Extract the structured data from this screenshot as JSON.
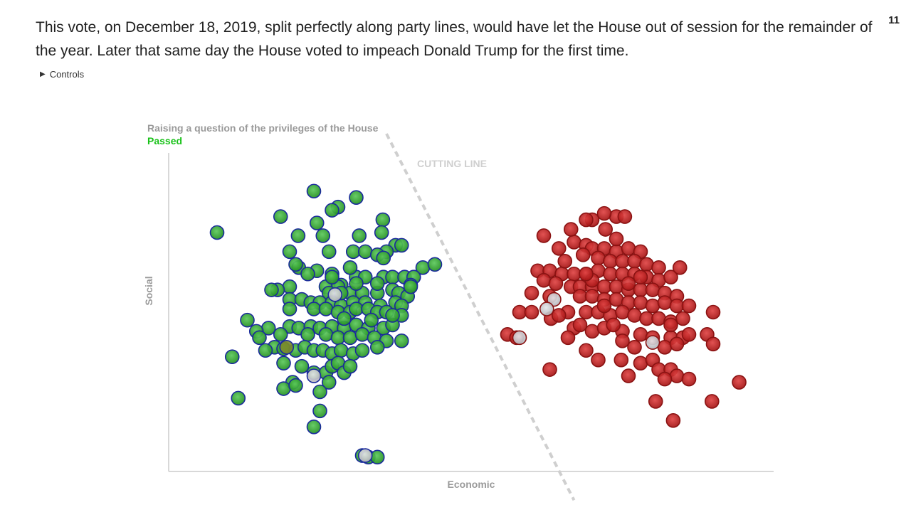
{
  "page_number": "11",
  "paragraph": "This vote, on December 18, 2019, split perfectly along party lines, would have let the House out of session for the remainder of the year. Later that same day the House voted to impeach Donald Trump for the first time.",
  "controls_label": "Controls",
  "colors": {
    "democrat_fill": "#2ea02e",
    "democrat_stroke": "#1a2a9c",
    "republican_fill": "#c31d1d",
    "republican_stroke": "#8a1212",
    "neutral_fill": "#c9c9cf",
    "passed_text": "#19c219",
    "axis": "#cccccc",
    "label_gray": "#9a9a9a",
    "cutting_line": "#cfcfcf"
  },
  "chart_data": {
    "type": "scatter",
    "title": "Raising a question of the privileges of the House",
    "result": "Passed",
    "xlabel": "Economic",
    "ylabel": "Social",
    "cutting_line_label": "CUTTING LINE",
    "cutting_line": [
      [
        0.36,
        1.06
      ],
      [
        0.67,
        -0.09
      ]
    ],
    "xlim": [
      0,
      1
    ],
    "ylim": [
      0,
      1
    ],
    "series": [
      {
        "party": "democrat",
        "points": [
          [
            0.24,
            0.88
          ],
          [
            0.31,
            0.86
          ],
          [
            0.28,
            0.83
          ],
          [
            0.27,
            0.82
          ],
          [
            0.185,
            0.8
          ],
          [
            0.245,
            0.78
          ],
          [
            0.354,
            0.79
          ],
          [
            0.352,
            0.75
          ],
          [
            0.08,
            0.75
          ],
          [
            0.214,
            0.74
          ],
          [
            0.255,
            0.74
          ],
          [
            0.315,
            0.74
          ],
          [
            0.375,
            0.71
          ],
          [
            0.385,
            0.71
          ],
          [
            0.36,
            0.69
          ],
          [
            0.2,
            0.69
          ],
          [
            0.265,
            0.69
          ],
          [
            0.305,
            0.69
          ],
          [
            0.325,
            0.69
          ],
          [
            0.345,
            0.68
          ],
          [
            0.42,
            0.64
          ],
          [
            0.215,
            0.64
          ],
          [
            0.245,
            0.63
          ],
          [
            0.27,
            0.62
          ],
          [
            0.23,
            0.62
          ],
          [
            0.31,
            0.61
          ],
          [
            0.355,
            0.61
          ],
          [
            0.37,
            0.61
          ],
          [
            0.39,
            0.61
          ],
          [
            0.405,
            0.61
          ],
          [
            0.325,
            0.61
          ],
          [
            0.4,
            0.585
          ],
          [
            0.285,
            0.585
          ],
          [
            0.2,
            0.58
          ],
          [
            0.26,
            0.58
          ],
          [
            0.28,
            0.58
          ],
          [
            0.18,
            0.57
          ],
          [
            0.17,
            0.57
          ],
          [
            0.265,
            0.56
          ],
          [
            0.3,
            0.56
          ],
          [
            0.32,
            0.56
          ],
          [
            0.345,
            0.56
          ],
          [
            0.37,
            0.57
          ],
          [
            0.38,
            0.56
          ],
          [
            0.395,
            0.55
          ],
          [
            0.2,
            0.54
          ],
          [
            0.22,
            0.54
          ],
          [
            0.235,
            0.53
          ],
          [
            0.25,
            0.53
          ],
          [
            0.27,
            0.53
          ],
          [
            0.285,
            0.52
          ],
          [
            0.305,
            0.53
          ],
          [
            0.325,
            0.53
          ],
          [
            0.35,
            0.52
          ],
          [
            0.375,
            0.53
          ],
          [
            0.385,
            0.52
          ],
          [
            0.2,
            0.51
          ],
          [
            0.24,
            0.51
          ],
          [
            0.26,
            0.51
          ],
          [
            0.28,
            0.5
          ],
          [
            0.3,
            0.5
          ],
          [
            0.31,
            0.51
          ],
          [
            0.33,
            0.51
          ],
          [
            0.345,
            0.5
          ],
          [
            0.36,
            0.5
          ],
          [
            0.385,
            0.49
          ],
          [
            0.13,
            0.475
          ],
          [
            0.165,
            0.45
          ],
          [
            0.2,
            0.455
          ],
          [
            0.215,
            0.45
          ],
          [
            0.235,
            0.455
          ],
          [
            0.25,
            0.45
          ],
          [
            0.27,
            0.455
          ],
          [
            0.29,
            0.45
          ],
          [
            0.31,
            0.46
          ],
          [
            0.33,
            0.45
          ],
          [
            0.355,
            0.45
          ],
          [
            0.37,
            0.46
          ],
          [
            0.37,
            0.49
          ],
          [
            0.145,
            0.44
          ],
          [
            0.15,
            0.42
          ],
          [
            0.23,
            0.43
          ],
          [
            0.26,
            0.43
          ],
          [
            0.28,
            0.42
          ],
          [
            0.3,
            0.42
          ],
          [
            0.32,
            0.43
          ],
          [
            0.34,
            0.42
          ],
          [
            0.36,
            0.41
          ],
          [
            0.385,
            0.41
          ],
          [
            0.175,
            0.39
          ],
          [
            0.19,
            0.385
          ],
          [
            0.21,
            0.38
          ],
          [
            0.225,
            0.39
          ],
          [
            0.24,
            0.38
          ],
          [
            0.255,
            0.38
          ],
          [
            0.27,
            0.37
          ],
          [
            0.285,
            0.38
          ],
          [
            0.305,
            0.37
          ],
          [
            0.32,
            0.38
          ],
          [
            0.345,
            0.39
          ],
          [
            0.16,
            0.38
          ],
          [
            0.105,
            0.36
          ],
          [
            0.19,
            0.34
          ],
          [
            0.22,
            0.33
          ],
          [
            0.24,
            0.31
          ],
          [
            0.26,
            0.31
          ],
          [
            0.27,
            0.33
          ],
          [
            0.28,
            0.34
          ],
          [
            0.29,
            0.31
          ],
          [
            0.3,
            0.33
          ],
          [
            0.265,
            0.28
          ],
          [
            0.205,
            0.28
          ],
          [
            0.19,
            0.26
          ],
          [
            0.21,
            0.27
          ],
          [
            0.25,
            0.25
          ],
          [
            0.115,
            0.23
          ],
          [
            0.25,
            0.19
          ],
          [
            0.24,
            0.14
          ],
          [
            0.32,
            0.05
          ],
          [
            0.33,
            0.045
          ],
          [
            0.345,
            0.045
          ],
          [
            0.44,
            0.65
          ],
          [
            0.4,
            0.58
          ],
          [
            0.29,
            0.48
          ],
          [
            0.335,
            0.475
          ],
          [
            0.27,
            0.61
          ],
          [
            0.355,
            0.67
          ],
          [
            0.21,
            0.65
          ],
          [
            0.3,
            0.64
          ],
          [
            0.285,
            0.56
          ],
          [
            0.31,
            0.59
          ],
          [
            0.345,
            0.59
          ],
          [
            0.185,
            0.43
          ]
        ],
        "neutral_points": [
          [
            0.275,
            0.555
          ],
          [
            0.24,
            0.3
          ],
          [
            0.325,
            0.05
          ]
        ],
        "olive_points": [
          [
            0.195,
            0.39
          ]
        ]
      },
      {
        "party": "republican",
        "points": [
          [
            0.7,
            0.79
          ],
          [
            0.74,
            0.8
          ],
          [
            0.72,
            0.81
          ],
          [
            0.69,
            0.79
          ],
          [
            0.722,
            0.76
          ],
          [
            0.754,
            0.8
          ],
          [
            0.62,
            0.74
          ],
          [
            0.645,
            0.7
          ],
          [
            0.67,
            0.72
          ],
          [
            0.69,
            0.71
          ],
          [
            0.7,
            0.7
          ],
          [
            0.72,
            0.7
          ],
          [
            0.74,
            0.69
          ],
          [
            0.76,
            0.7
          ],
          [
            0.78,
            0.69
          ],
          [
            0.685,
            0.68
          ],
          [
            0.71,
            0.67
          ],
          [
            0.73,
            0.66
          ],
          [
            0.75,
            0.66
          ],
          [
            0.77,
            0.66
          ],
          [
            0.79,
            0.65
          ],
          [
            0.81,
            0.64
          ],
          [
            0.61,
            0.63
          ],
          [
            0.63,
            0.63
          ],
          [
            0.65,
            0.62
          ],
          [
            0.67,
            0.62
          ],
          [
            0.69,
            0.62
          ],
          [
            0.71,
            0.63
          ],
          [
            0.73,
            0.62
          ],
          [
            0.75,
            0.62
          ],
          [
            0.77,
            0.62
          ],
          [
            0.79,
            0.61
          ],
          [
            0.81,
            0.6
          ],
          [
            0.83,
            0.61
          ],
          [
            0.845,
            0.64
          ],
          [
            0.62,
            0.6
          ],
          [
            0.64,
            0.59
          ],
          [
            0.665,
            0.58
          ],
          [
            0.68,
            0.58
          ],
          [
            0.7,
            0.58
          ],
          [
            0.72,
            0.58
          ],
          [
            0.74,
            0.58
          ],
          [
            0.76,
            0.57
          ],
          [
            0.78,
            0.57
          ],
          [
            0.8,
            0.57
          ],
          [
            0.82,
            0.56
          ],
          [
            0.84,
            0.55
          ],
          [
            0.6,
            0.56
          ],
          [
            0.63,
            0.55
          ],
          [
            0.68,
            0.55
          ],
          [
            0.7,
            0.55
          ],
          [
            0.72,
            0.54
          ],
          [
            0.74,
            0.54
          ],
          [
            0.76,
            0.53
          ],
          [
            0.78,
            0.53
          ],
          [
            0.8,
            0.52
          ],
          [
            0.82,
            0.53
          ],
          [
            0.84,
            0.52
          ],
          [
            0.86,
            0.52
          ],
          [
            0.58,
            0.5
          ],
          [
            0.6,
            0.5
          ],
          [
            0.632,
            0.48
          ],
          [
            0.66,
            0.5
          ],
          [
            0.69,
            0.5
          ],
          [
            0.71,
            0.5
          ],
          [
            0.73,
            0.49
          ],
          [
            0.75,
            0.5
          ],
          [
            0.77,
            0.49
          ],
          [
            0.79,
            0.48
          ],
          [
            0.81,
            0.48
          ],
          [
            0.83,
            0.47
          ],
          [
            0.85,
            0.48
          ],
          [
            0.9,
            0.5
          ],
          [
            0.56,
            0.43
          ],
          [
            0.67,
            0.45
          ],
          [
            0.68,
            0.46
          ],
          [
            0.7,
            0.44
          ],
          [
            0.72,
            0.45
          ],
          [
            0.75,
            0.44
          ],
          [
            0.78,
            0.43
          ],
          [
            0.8,
            0.42
          ],
          [
            0.83,
            0.42
          ],
          [
            0.85,
            0.42
          ],
          [
            0.86,
            0.43
          ],
          [
            0.89,
            0.43
          ],
          [
            0.9,
            0.4
          ],
          [
            0.66,
            0.42
          ],
          [
            0.75,
            0.41
          ],
          [
            0.77,
            0.39
          ],
          [
            0.82,
            0.39
          ],
          [
            0.84,
            0.4
          ],
          [
            0.69,
            0.38
          ],
          [
            0.71,
            0.35
          ],
          [
            0.748,
            0.35
          ],
          [
            0.78,
            0.34
          ],
          [
            0.8,
            0.35
          ],
          [
            0.81,
            0.32
          ],
          [
            0.83,
            0.32
          ],
          [
            0.84,
            0.3
          ],
          [
            0.86,
            0.29
          ],
          [
            0.63,
            0.32
          ],
          [
            0.76,
            0.3
          ],
          [
            0.82,
            0.29
          ],
          [
            0.943,
            0.28
          ],
          [
            0.805,
            0.22
          ],
          [
            0.898,
            0.22
          ],
          [
            0.834,
            0.16
          ],
          [
            0.74,
            0.73
          ],
          [
            0.665,
            0.76
          ],
          [
            0.7,
            0.6
          ],
          [
            0.76,
            0.59
          ],
          [
            0.72,
            0.52
          ],
          [
            0.645,
            0.49
          ],
          [
            0.575,
            0.42
          ],
          [
            0.78,
            0.61
          ],
          [
            0.735,
            0.46
          ],
          [
            0.69,
            0.62
          ],
          [
            0.83,
            0.46
          ],
          [
            0.655,
            0.66
          ]
        ],
        "neutral_points": [
          [
            0.637,
            0.54
          ],
          [
            0.625,
            0.51
          ],
          [
            0.58,
            0.42
          ],
          [
            0.8,
            0.405
          ]
        ],
        "olive_points": []
      }
    ]
  }
}
